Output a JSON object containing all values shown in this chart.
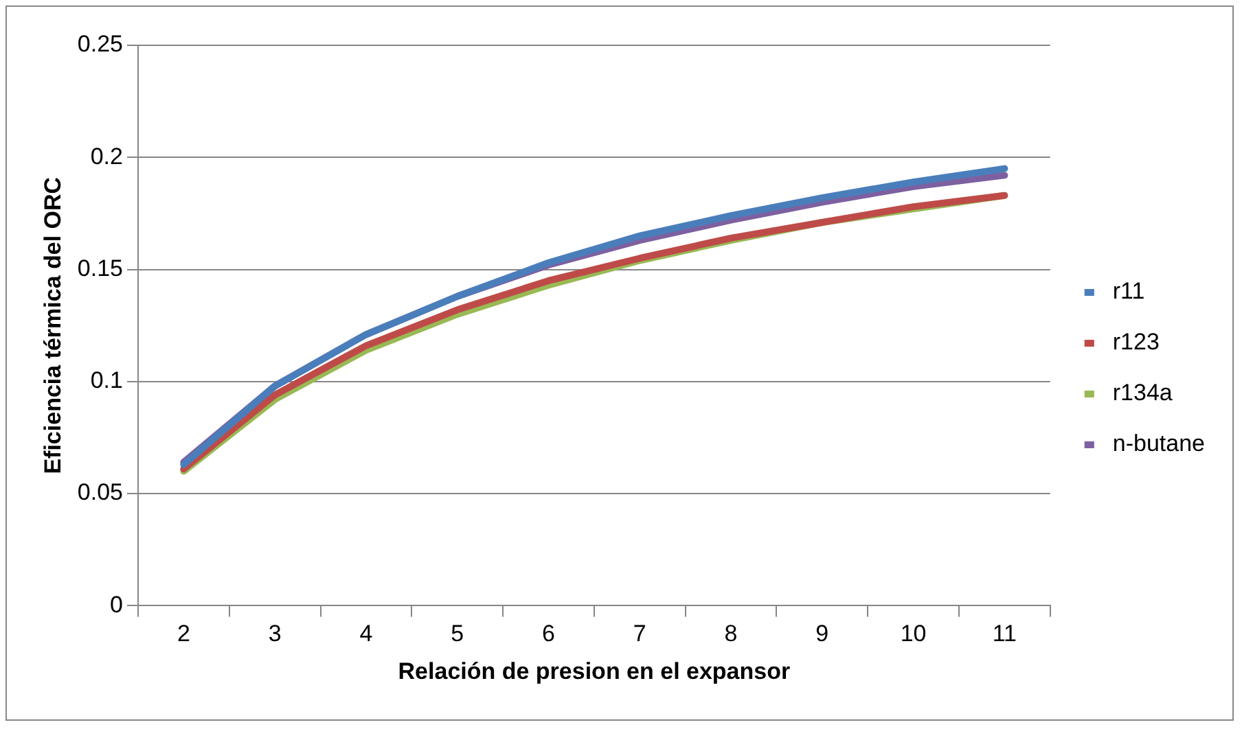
{
  "chart_data": {
    "type": "line",
    "xlabel": "Relación de presion en el expansor",
    "ylabel": "Eficiencia térmica del ORC",
    "categories": [
      "2",
      "3",
      "4",
      "5",
      "6",
      "7",
      "8",
      "9",
      "10",
      "11"
    ],
    "series": [
      {
        "name": "r11",
        "color": "#4a7ebb",
        "values": [
          0.063,
          0.098,
          0.121,
          0.138,
          0.153,
          0.165,
          0.174,
          0.182,
          0.189,
          0.195
        ]
      },
      {
        "name": "r123",
        "color": "#be4b48",
        "values": [
          0.061,
          0.094,
          0.116,
          0.132,
          0.145,
          0.155,
          0.164,
          0.171,
          0.178,
          0.183
        ]
      },
      {
        "name": "r134a",
        "color": "#98b954",
        "values": [
          0.06,
          0.092,
          0.114,
          0.13,
          0.143,
          0.154,
          0.163,
          0.171,
          0.177,
          0.183
        ]
      },
      {
        "name": "n-butane",
        "color": "#7d60a0",
        "values": [
          0.064,
          0.098,
          0.121,
          0.138,
          0.152,
          0.163,
          0.172,
          0.18,
          0.187,
          0.192
        ]
      }
    ],
    "ylim": [
      0,
      0.25
    ],
    "yticks": [
      0,
      0.05,
      0.1,
      0.15,
      0.2,
      0.25
    ],
    "grid": "y",
    "legend": "right",
    "marker": "none",
    "line_style": "solid"
  }
}
